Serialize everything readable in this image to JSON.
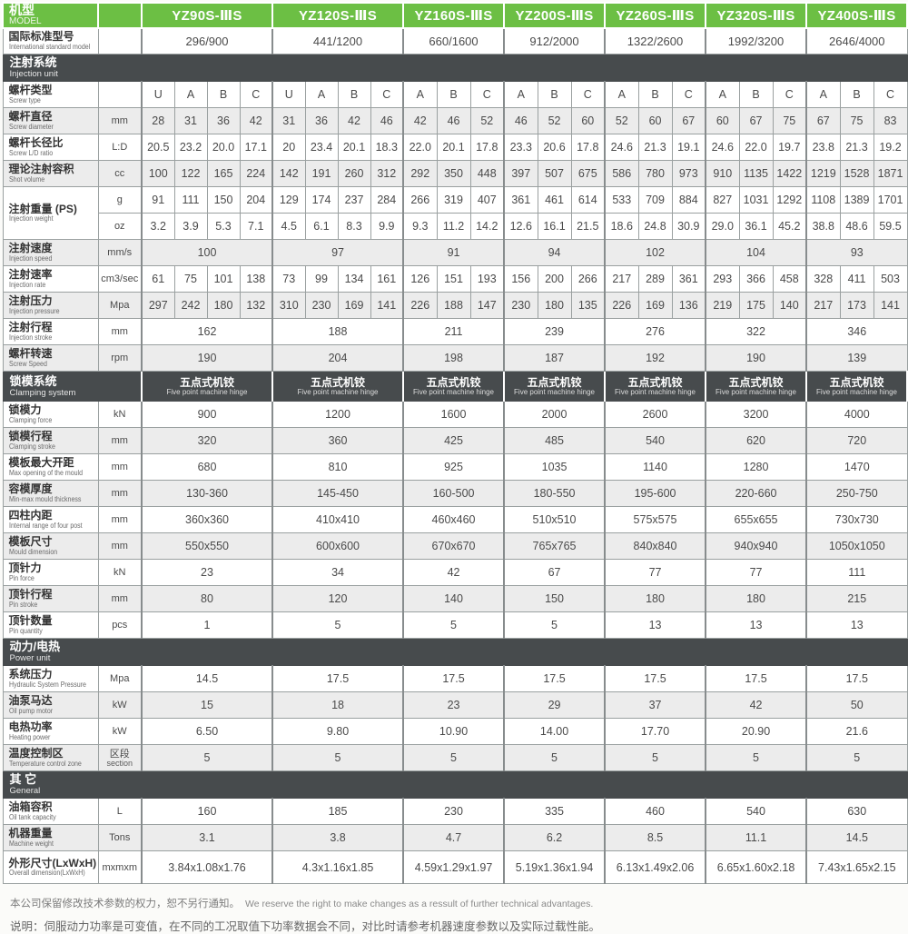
{
  "colors": {
    "green": "#6cbf44",
    "dark_bar": "#474b4d",
    "shade": "#ececec"
  },
  "header": {
    "model": {
      "zh": "机型",
      "en": "MODEL"
    },
    "models": [
      "YZ90S-ⅢS",
      "YZ120S-ⅢS",
      "YZ160S-ⅢS",
      "YZ200S-ⅢS",
      "YZ260S-ⅢS",
      "YZ320S-ⅢS",
      "YZ400S-ⅢS"
    ],
    "group_cols": [
      4,
      4,
      3,
      3,
      3,
      3,
      3
    ],
    "standard": {
      "zh": "国际标准型号",
      "en": "International standard model",
      "values": [
        "296/900",
        "441/1200",
        "660/1600",
        "912/2000",
        "1322/2600",
        "1992/3200",
        "2646/4000"
      ]
    }
  },
  "sections": [
    {
      "bar": "full",
      "zh": "注射系统",
      "en": "Injection unit",
      "rows": [
        {
          "zh": "螺杆类型",
          "en": "Screw type",
          "unit": "",
          "layout": "sub",
          "shade": false,
          "values": [
            "U",
            "A",
            "B",
            "C",
            "U",
            "A",
            "B",
            "C",
            "A",
            "B",
            "C",
            "A",
            "B",
            "C",
            "A",
            "B",
            "C",
            "A",
            "B",
            "C",
            "A",
            "B",
            "C"
          ]
        },
        {
          "zh": "螺杆直径",
          "en": "Screw diameter",
          "unit": "mm",
          "layout": "sub",
          "shade": true,
          "values": [
            "28",
            "31",
            "36",
            "42",
            "31",
            "36",
            "42",
            "46",
            "42",
            "46",
            "52",
            "46",
            "52",
            "60",
            "52",
            "60",
            "67",
            "60",
            "67",
            "75",
            "67",
            "75",
            "83"
          ]
        },
        {
          "zh": "螺杆长径比",
          "en": "Screw L/D ratio",
          "unit": "L:D",
          "layout": "sub",
          "shade": false,
          "values": [
            "20.5",
            "23.2",
            "20.0",
            "17.1",
            "20",
            "23.4",
            "20.1",
            "18.3",
            "22.0",
            "20.1",
            "17.8",
            "23.3",
            "20.6",
            "17.8",
            "24.6",
            "21.3",
            "19.1",
            "24.6",
            "22.0",
            "19.7",
            "23.8",
            "21.3",
            "19.2"
          ]
        },
        {
          "zh": "理论注射容积",
          "en": "Shot volume",
          "unit": "cc",
          "layout": "sub",
          "shade": true,
          "values": [
            "100",
            "122",
            "165",
            "224",
            "142",
            "191",
            "260",
            "312",
            "292",
            "350",
            "448",
            "397",
            "507",
            "675",
            "586",
            "780",
            "973",
            "910",
            "1135",
            "1422",
            "1219",
            "1528",
            "1871"
          ]
        },
        {
          "zh": "注射重量 (PS)",
          "en": "Injection weight",
          "unit": "g",
          "layout": "sub",
          "shade": false,
          "label_rowspan": 2,
          "values": [
            "91",
            "111",
            "150",
            "204",
            "129",
            "174",
            "237",
            "284",
            "266",
            "319",
            "407",
            "361",
            "461",
            "614",
            "533",
            "709",
            "884",
            "827",
            "1031",
            "1292",
            "1108",
            "1389",
            "1701"
          ]
        },
        {
          "skip_label": true,
          "unit": "oz",
          "layout": "sub",
          "shade": false,
          "values": [
            "3.2",
            "3.9",
            "5.3",
            "7.1",
            "4.5",
            "6.1",
            "8.3",
            "9.9",
            "9.3",
            "11.2",
            "14.2",
            "12.6",
            "16.1",
            "21.5",
            "18.6",
            "24.8",
            "30.9",
            "29.0",
            "36.1",
            "45.2",
            "38.8",
            "48.6",
            "59.5"
          ]
        },
        {
          "zh": "注射速度",
          "en": "Injection speed",
          "unit": "mm/s",
          "layout": "group",
          "shade": true,
          "values": [
            "100",
            "97",
            "91",
            "94",
            "102",
            "104",
            "93"
          ]
        },
        {
          "zh": "注射速率",
          "en": "Injection rate",
          "unit": "cm3/sec",
          "layout": "sub",
          "shade": false,
          "values": [
            "61",
            "75",
            "101",
            "138",
            "73",
            "99",
            "134",
            "161",
            "126",
            "151",
            "193",
            "156",
            "200",
            "266",
            "217",
            "289",
            "361",
            "293",
            "366",
            "458",
            "328",
            "411",
            "503"
          ]
        },
        {
          "zh": "注射压力",
          "en": "Injection pressure",
          "unit": "Mpa",
          "layout": "sub",
          "shade": true,
          "values": [
            "297",
            "242",
            "180",
            "132",
            "310",
            "230",
            "169",
            "141",
            "226",
            "188",
            "147",
            "230",
            "180",
            "135",
            "226",
            "169",
            "136",
            "219",
            "175",
            "140",
            "217",
            "173",
            "141"
          ]
        },
        {
          "zh": "注射行程",
          "en": "Injection stroke",
          "unit": "mm",
          "layout": "group",
          "shade": false,
          "values": [
            "162",
            "188",
            "211",
            "239",
            "276",
            "322",
            "346"
          ]
        },
        {
          "zh": "螺杆转速",
          "en": "Screw Speed",
          "unit": "rpm",
          "layout": "group",
          "shade": true,
          "values": [
            "190",
            "204",
            "198",
            "187",
            "192",
            "190",
            "139"
          ]
        }
      ]
    },
    {
      "bar": "groups",
      "zh": "锁模系统",
      "en": "Clamping system",
      "group_zh": "五点式机铰",
      "group_en": "Five point machine hinge",
      "rows": [
        {
          "zh": "锁模力",
          "en": "Clamping force",
          "unit": "kN",
          "layout": "group",
          "shade": false,
          "values": [
            "900",
            "1200",
            "1600",
            "2000",
            "2600",
            "3200",
            "4000"
          ]
        },
        {
          "zh": "锁模行程",
          "en": "Clamping stroke",
          "unit": "mm",
          "layout": "group",
          "shade": true,
          "values": [
            "320",
            "360",
            "425",
            "485",
            "540",
            "620",
            "720"
          ]
        },
        {
          "zh": "模板最大开距",
          "en": "Max opening of the mould",
          "unit": "mm",
          "layout": "group",
          "shade": false,
          "values": [
            "680",
            "810",
            "925",
            "1035",
            "1140",
            "1280",
            "1470"
          ]
        },
        {
          "zh": "容模厚度",
          "en": "Min-max mould thickness",
          "unit": "mm",
          "layout": "group",
          "shade": true,
          "values": [
            "130-360",
            "145-450",
            "160-500",
            "180-550",
            "195-600",
            "220-660",
            "250-750"
          ]
        },
        {
          "zh": "四柱内距",
          "en": "Internal range of four post",
          "unit": "mm",
          "layout": "group",
          "shade": false,
          "values": [
            "360x360",
            "410x410",
            "460x460",
            "510x510",
            "575x575",
            "655x655",
            "730x730"
          ]
        },
        {
          "zh": "模板尺寸",
          "en": "Mould dimension",
          "unit": "mm",
          "layout": "group",
          "shade": true,
          "values": [
            "550x550",
            "600x600",
            "670x670",
            "765x765",
            "840x840",
            "940x940",
            "1050x1050"
          ]
        },
        {
          "zh": "顶针力",
          "en": "Pin force",
          "unit": "kN",
          "layout": "group",
          "shade": false,
          "values": [
            "23",
            "34",
            "42",
            "67",
            "77",
            "77",
            "111"
          ]
        },
        {
          "zh": "顶针行程",
          "en": "Pin stroke",
          "unit": "mm",
          "layout": "group",
          "shade": true,
          "values": [
            "80",
            "120",
            "140",
            "150",
            "180",
            "180",
            "215"
          ]
        },
        {
          "zh": "顶针数量",
          "en": "Pin quantity",
          "unit": "pcs",
          "layout": "group",
          "shade": false,
          "values": [
            "1",
            "5",
            "5",
            "5",
            "13",
            "13",
            "13"
          ]
        }
      ]
    },
    {
      "bar": "full",
      "zh": "动力/电热",
      "en": "Power unit",
      "rows": [
        {
          "zh": "系统压力",
          "en": "Hydraulic System Pressure",
          "unit": "Mpa",
          "layout": "group",
          "shade": false,
          "values": [
            "14.5",
            "17.5",
            "17.5",
            "17.5",
            "17.5",
            "17.5",
            "17.5"
          ]
        },
        {
          "zh": "油泵马达",
          "en": "Oil pump motor",
          "unit": "kW",
          "layout": "group",
          "shade": true,
          "values": [
            "15",
            "18",
            "23",
            "29",
            "37",
            "42",
            "50"
          ]
        },
        {
          "zh": "电热功率",
          "en": "Heating power",
          "unit": "kW",
          "layout": "group",
          "shade": false,
          "values": [
            "6.50",
            "9.80",
            "10.90",
            "14.00",
            "17.70",
            "20.90",
            "21.6"
          ]
        },
        {
          "zh": "温度控制区",
          "en": "Temperature control zone",
          "unit": "区段|section",
          "layout": "group",
          "shade": true,
          "values": [
            "5",
            "5",
            "5",
            "5",
            "5",
            "5",
            "5"
          ]
        }
      ]
    },
    {
      "bar": "full",
      "zh": "其 它",
      "en": "General",
      "rows": [
        {
          "zh": "油箱容积",
          "en": "Oil tank capacity",
          "unit": "L",
          "layout": "group",
          "shade": false,
          "values": [
            "160",
            "185",
            "230",
            "335",
            "460",
            "540",
            "630"
          ]
        },
        {
          "zh": "机器重量",
          "en": "Machine weight",
          "unit": "Tons",
          "layout": "group",
          "shade": true,
          "values": [
            "3.1",
            "3.8",
            "4.7",
            "6.2",
            "8.5",
            "11.1",
            "14.5"
          ]
        },
        {
          "zh": "外形尺寸(LxWxH)",
          "en": "Overall dimension(LxWxH)",
          "unit": "mxmxm",
          "layout": "group",
          "shade": false,
          "tall": true,
          "values": [
            "3.84x1.08x1.76",
            "4.3x1.16x1.85",
            "4.59x1.29x1.97",
            "5.19x1.36x1.94",
            "6.13x1.49x2.06",
            "6.65x1.60x2.18",
            "7.43x1.65x2.15"
          ]
        }
      ]
    }
  ],
  "footer": {
    "line1_zh": "本公司保留修改技术参数的权力，恕不另行通知。",
    "line1_en": "We reserve the right to make changes as a ressult of further technical advantages.",
    "line2": "说明：伺服动力功率是可变值，在不同的工况取值下功率数据会不同，对比时请参考机器速度参数以及实际过载性能。"
  }
}
